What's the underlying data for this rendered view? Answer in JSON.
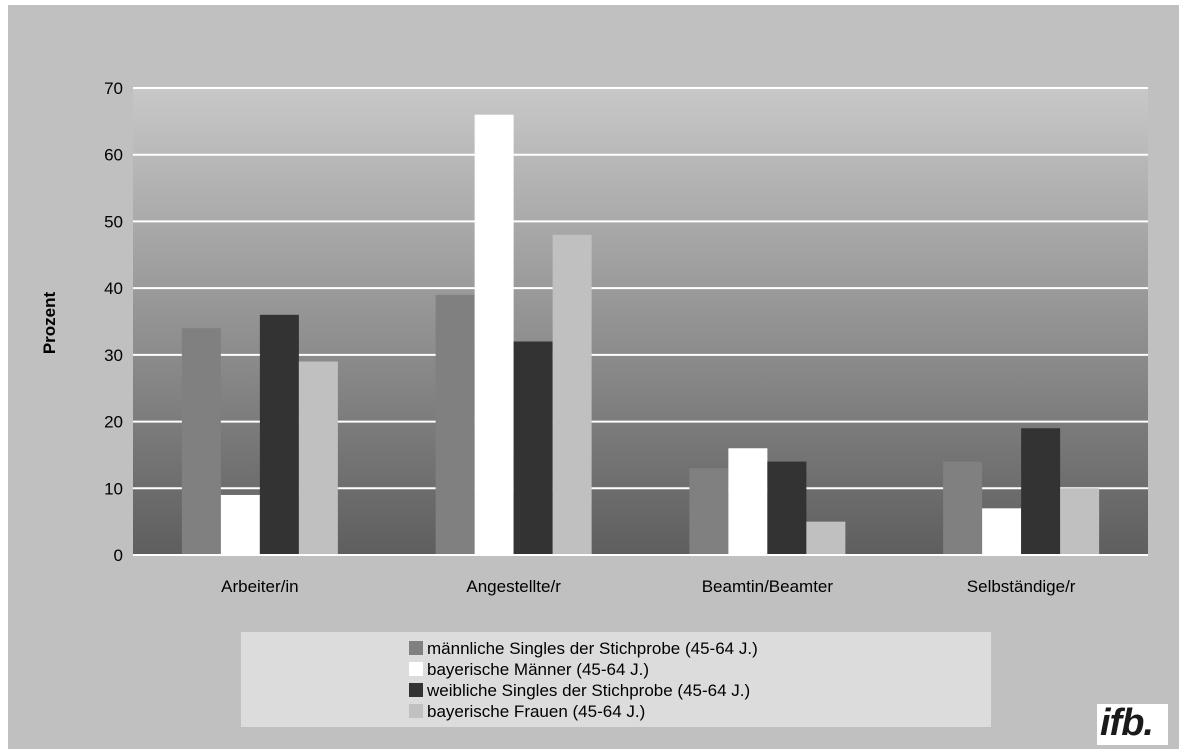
{
  "chart_data": {
    "type": "bar",
    "categories": [
      "Arbeiter/in",
      "Angestellte/r",
      "Beamtin/Beamter",
      "Selbständige/r"
    ],
    "series": [
      {
        "name": "männliche Singles der Stichprobe (45-64 J.)",
        "values": [
          34,
          39,
          13,
          14
        ],
        "color": "#808080"
      },
      {
        "name": "bayerische Männer (45-64 J.)",
        "values": [
          9,
          66,
          16,
          7
        ],
        "color": "#ffffff"
      },
      {
        "name": "weibliche Singles der Stichprobe (45-64 J.)",
        "values": [
          36,
          32,
          14,
          19
        ],
        "color": "#333333"
      },
      {
        "name": "bayerische Frauen (45-64 J.)",
        "values": [
          29,
          48,
          5,
          10
        ],
        "color": "#c0c0c0"
      }
    ],
    "ylabel": "Prozent",
    "ylim": [
      0,
      70
    ],
    "yticks": [
      0,
      10,
      20,
      30,
      40,
      50,
      60,
      70
    ],
    "grid": true,
    "legend_placement": "bottom-center"
  },
  "logo": {
    "text": "ifb."
  }
}
